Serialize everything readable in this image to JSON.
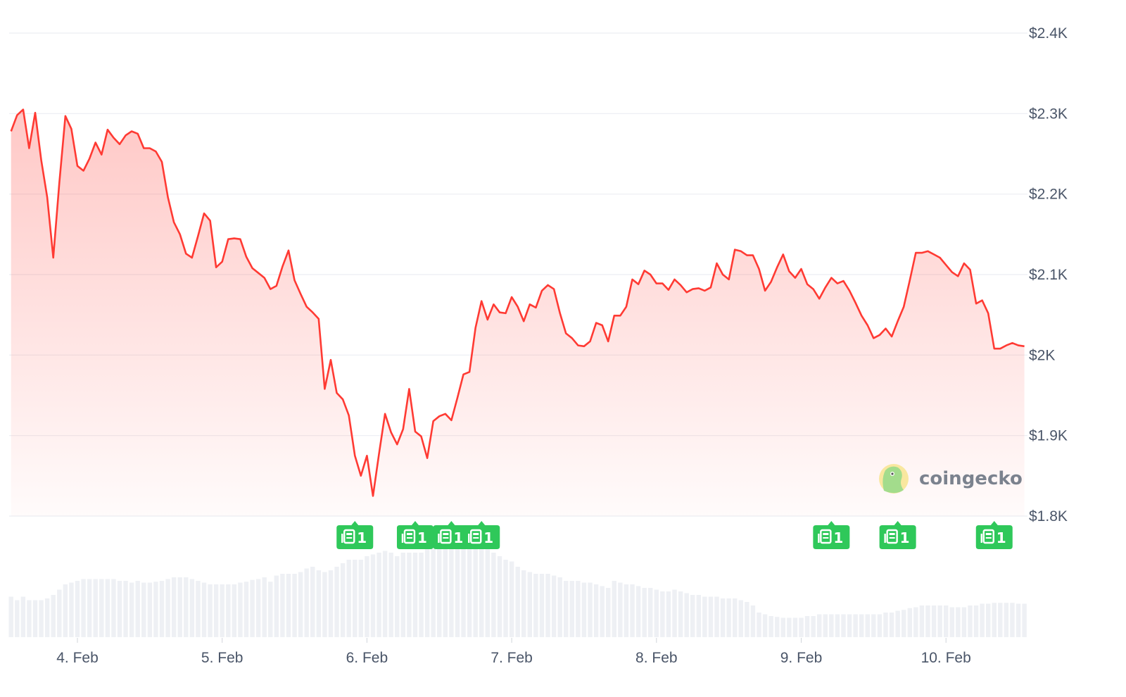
{
  "chart_data": {
    "type": "line",
    "title": "",
    "xlabel": "",
    "ylabel": "",
    "ylim": [
      1800,
      2400
    ],
    "y_ticks": [
      "$1.8K",
      "$1.9K",
      "$2K",
      "$2.1K",
      "$2.2K",
      "$2.3K",
      "$2.4K"
    ],
    "y_tick_values": [
      1800,
      1900,
      2000,
      2100,
      2200,
      2300,
      2400
    ],
    "x_ticks": [
      "4. Feb",
      "5. Feb",
      "6. Feb",
      "7. Feb",
      "8. Feb",
      "9. Feb",
      "10. Feb"
    ],
    "x_tick_days": [
      4,
      5,
      6,
      7,
      8,
      9,
      10
    ],
    "grid": "horizontal",
    "interval": "hourly",
    "line_color": "#ff3a33",
    "fill_color": "#ff3a33",
    "price_series": [
      {
        "day": 3,
        "start_hour": 13,
        "prices": [
          2278,
          2298,
          2305,
          2257,
          2301,
          2242,
          2196,
          2121,
          2214,
          2297,
          2281
        ]
      },
      {
        "day": 4,
        "start_hour": 0,
        "prices": [
          2235,
          2229,
          2244,
          2264,
          2249,
          2280,
          2270,
          2262,
          2273,
          2278,
          2275,
          2257,
          2257,
          2253,
          2240,
          2196,
          2165,
          2150,
          2126,
          2121,
          2148,
          2176,
          2167,
          2109
        ]
      },
      {
        "day": 5,
        "start_hour": 0,
        "prices": [
          2116,
          2144,
          2145,
          2144,
          2122,
          2108,
          2102,
          2096,
          2082,
          2086,
          2110,
          2130,
          2093,
          2076,
          2060,
          2053,
          2045,
          1958,
          1994,
          1953,
          1945,
          1925,
          1875,
          1850
        ]
      },
      {
        "day": 6,
        "start_hour": 0,
        "prices": [
          1875,
          1825,
          1877,
          1927,
          1904,
          1889,
          1908,
          1958,
          1905,
          1899,
          1872,
          1918,
          1924,
          1927,
          1919,
          1947,
          1976,
          1979,
          2034,
          2067,
          2044,
          2063,
          2053,
          2052
        ]
      },
      {
        "day": 7,
        "start_hour": 0,
        "prices": [
          2072,
          2060,
          2042,
          2063,
          2059,
          2080,
          2087,
          2082,
          2052,
          2027,
          2021,
          2012,
          2011,
          2017,
          2040,
          2037,
          2017,
          2049,
          2049,
          2060,
          2094,
          2088,
          2105,
          2100
        ]
      },
      {
        "day": 8,
        "start_hour": 0,
        "prices": [
          2089,
          2089,
          2081,
          2094,
          2087,
          2078,
          2082,
          2083,
          2080,
          2084,
          2114,
          2100,
          2094,
          2131,
          2129,
          2124,
          2124,
          2107,
          2080,
          2091,
          2109,
          2125,
          2104,
          2096
        ]
      },
      {
        "day": 9,
        "start_hour": 0,
        "prices": [
          2107,
          2088,
          2082,
          2070,
          2084,
          2096,
          2089,
          2092,
          2080,
          2065,
          2049,
          2037,
          2021,
          2025,
          2033,
          2023,
          2042,
          2060,
          2093,
          2127,
          2127,
          2129,
          2125,
          2121
        ]
      },
      {
        "day": 10,
        "start_hour": 0,
        "prices": [
          2112,
          2103,
          2098,
          2114,
          2106,
          2064,
          2068,
          2052,
          2008,
          2008,
          2012,
          2015,
          2012,
          2011
        ]
      }
    ],
    "volume_relative_percent": [
      {
        "day": 3,
        "start_hour": 13,
        "values": [
          46,
          42,
          46,
          42,
          42,
          42,
          44,
          48,
          54,
          60,
          62
        ]
      },
      {
        "day": 4,
        "start_hour": 0,
        "values": [
          64,
          66,
          66,
          66,
          66,
          66,
          66,
          64,
          64,
          62,
          64,
          62,
          62,
          63,
          64,
          66,
          68,
          68,
          68,
          66,
          64,
          62,
          60,
          60
        ]
      },
      {
        "day": 5,
        "start_hour": 0,
        "values": [
          60,
          60,
          60,
          62,
          63,
          65,
          66,
          68,
          63,
          70,
          72,
          72,
          72,
          74,
          78,
          80,
          76,
          74,
          76,
          80,
          84,
          88,
          88,
          88
        ]
      },
      {
        "day": 6,
        "start_hour": 0,
        "values": [
          92,
          94,
          96,
          98,
          96,
          92,
          96,
          96,
          96,
          96,
          100,
          100,
          100,
          100,
          100,
          100,
          100,
          100,
          100,
          100,
          100,
          96,
          92,
          88
        ]
      },
      {
        "day": 7,
        "start_hour": 0,
        "values": [
          86,
          80,
          76,
          74,
          72,
          72,
          72,
          70,
          68,
          64,
          64,
          64,
          62,
          62,
          60,
          58,
          56,
          64,
          62,
          60,
          60,
          58,
          56,
          56
        ]
      },
      {
        "day": 8,
        "start_hour": 0,
        "values": [
          54,
          52,
          52,
          54,
          52,
          50,
          48,
          48,
          46,
          46,
          46,
          44,
          44,
          44,
          42,
          40,
          36,
          28,
          26,
          24,
          23,
          22,
          22,
          22
        ]
      },
      {
        "day": 9,
        "start_hour": 0,
        "values": [
          22,
          24,
          24,
          26,
          26,
          26,
          26,
          26,
          26,
          26,
          26,
          26,
          26,
          26,
          28,
          28,
          30,
          31,
          33,
          34,
          36,
          36,
          36,
          36
        ]
      },
      {
        "day": 10,
        "start_hour": 0,
        "values": [
          36,
          34,
          34,
          34,
          36,
          36,
          38,
          38,
          39,
          39,
          39,
          39,
          38,
          38
        ]
      }
    ],
    "volume_color": "#eef0f4",
    "news_markers": [
      {
        "day": 5,
        "hour": 22,
        "count": "1"
      },
      {
        "day": 6,
        "hour": 8,
        "count": "1"
      },
      {
        "day": 6,
        "hour": 14,
        "count": "1"
      },
      {
        "day": 6,
        "hour": 19,
        "count": "1"
      },
      {
        "day": 9,
        "hour": 5,
        "count": "1"
      },
      {
        "day": 9,
        "hour": 16,
        "count": "1"
      },
      {
        "day": 10,
        "hour": 8,
        "count": "1"
      }
    ],
    "news_marker_color": "#2fc85a",
    "news_icon": "newspaper-icon"
  },
  "watermark": {
    "text": "coingecko",
    "icon": "gecko-logo-icon"
  }
}
